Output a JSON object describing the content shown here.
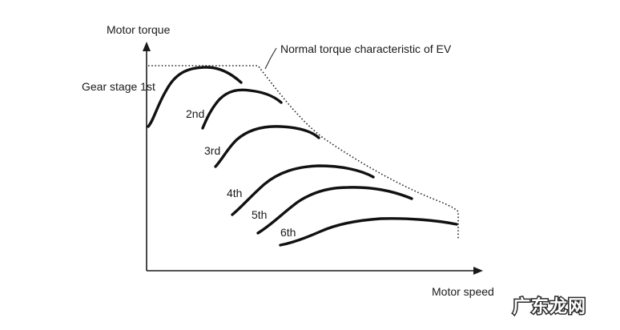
{
  "diagram": {
    "y_axis_label": "Motor torque",
    "x_axis_label": "Motor speed",
    "envelope_label": "Normal torque characteristic of EV",
    "gears": [
      {
        "label": "Gear stage 1st"
      },
      {
        "label": "2nd"
      },
      {
        "label": "3rd"
      },
      {
        "label": "4th"
      },
      {
        "label": "5th"
      },
      {
        "label": "6th"
      }
    ]
  },
  "watermark": {
    "text": "广东龙网"
  }
}
